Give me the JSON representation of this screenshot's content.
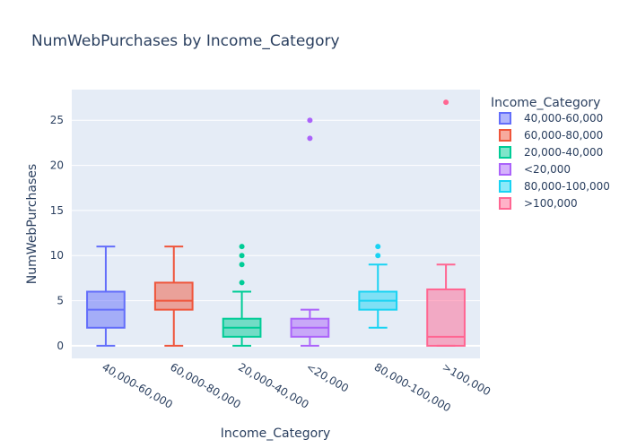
{
  "chart_data": {
    "type": "box",
    "title": "NumWebPurchases by Income_Category",
    "xlabel": "Income_Category",
    "ylabel": "NumWebPurchases",
    "ylim": [
      -1.4,
      28.4
    ],
    "yticks": [
      0,
      5,
      10,
      15,
      20,
      25
    ],
    "grid": true,
    "legend_title": "Income_Category",
    "legend_position": "top-right",
    "categories": [
      "40,000-60,000",
      "60,000-80,000",
      "20,000-40,000",
      "<20,000",
      "80,000-100,000",
      ">100,000"
    ],
    "series": [
      {
        "name": "40,000-60,000",
        "color": "#636efa",
        "min": 0,
        "q1": 2,
        "median": 4,
        "q3": 6,
        "max": 11,
        "outliers": []
      },
      {
        "name": "60,000-80,000",
        "color": "#ef553b",
        "min": 0,
        "q1": 4,
        "median": 5,
        "q3": 7,
        "max": 11,
        "outliers": []
      },
      {
        "name": "20,000-40,000",
        "color": "#00cc96",
        "min": 0,
        "q1": 1,
        "median": 2,
        "q3": 3,
        "max": 6,
        "outliers": [
          7,
          9,
          10,
          11
        ]
      },
      {
        "name": "<20,000",
        "color": "#ab63fa",
        "min": 0,
        "q1": 1,
        "median": 2,
        "q3": 3,
        "max": 4,
        "outliers": [
          23,
          25
        ]
      },
      {
        "name": "80,000-100,000",
        "color": "#19d3f3",
        "min": 2,
        "q1": 4,
        "median": 5,
        "q3": 6,
        "max": 9,
        "outliers": [
          10,
          11
        ]
      },
      {
        "name": ">100,000",
        "color": "#ff6692",
        "min": 0,
        "q1": 0,
        "median": 1,
        "q3": 6.25,
        "max": 9,
        "outliers": [
          27
        ]
      }
    ]
  }
}
